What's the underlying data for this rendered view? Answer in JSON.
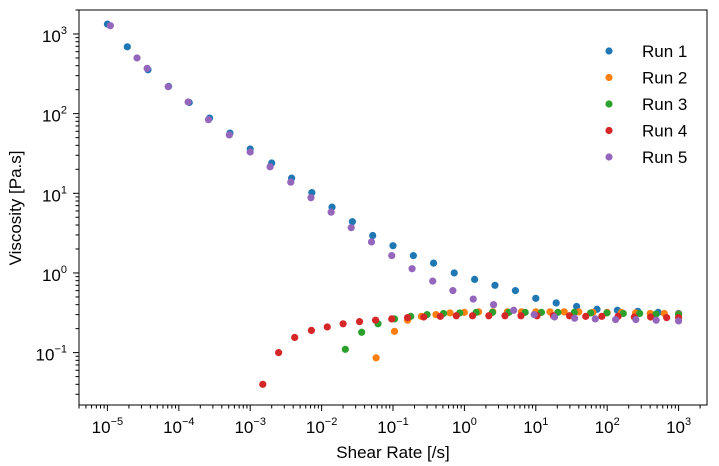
{
  "chart_data": {
    "type": "scatter",
    "xlabel": "Shear Rate [/s]",
    "ylabel": "Viscosity [Pa.s]",
    "x_scale": "log",
    "y_scale": "log",
    "xlim": [
      4e-06,
      2500.0
    ],
    "ylim": [
      0.022,
      2000
    ],
    "x_ticks": [
      {
        "value": 1e-05,
        "base": "10",
        "exp": "−5"
      },
      {
        "value": 0.0001,
        "base": "10",
        "exp": "−4"
      },
      {
        "value": 0.001,
        "base": "10",
        "exp": "−3"
      },
      {
        "value": 0.01,
        "base": "10",
        "exp": "−2"
      },
      {
        "value": 0.1,
        "base": "10",
        "exp": "−1"
      },
      {
        "value": 1,
        "base": "10",
        "exp": "0"
      },
      {
        "value": 10,
        "base": "10",
        "exp": "1"
      },
      {
        "value": 100,
        "base": "10",
        "exp": "2"
      },
      {
        "value": 1000,
        "base": "10",
        "exp": "3"
      }
    ],
    "y_ticks": [
      {
        "value": 0.1,
        "base": "10",
        "exp": "−1"
      },
      {
        "value": 1,
        "base": "10",
        "exp": "0"
      },
      {
        "value": 10,
        "base": "10",
        "exp": "1"
      },
      {
        "value": 100,
        "base": "10",
        "exp": "2"
      },
      {
        "value": 1000,
        "base": "10",
        "exp": "3"
      }
    ],
    "legend_position": "top-right",
    "grid": false,
    "series": [
      {
        "name": "Run 1",
        "color": "#1f77b4",
        "points": [
          [
            1e-05,
            1330
          ],
          [
            1.9e-05,
            690
          ],
          [
            3.7e-05,
            355
          ],
          [
            7.2e-05,
            220
          ],
          [
            0.00014,
            138
          ],
          [
            0.00027,
            88
          ],
          [
            0.00052,
            57
          ],
          [
            0.001,
            36
          ],
          [
            0.002,
            24
          ],
          [
            0.0038,
            15.5
          ],
          [
            0.0073,
            10.2
          ],
          [
            0.014,
            6.7
          ],
          [
            0.027,
            4.4
          ],
          [
            0.052,
            2.95
          ],
          [
            0.1,
            2.2
          ],
          [
            0.193,
            1.65
          ],
          [
            0.37,
            1.33
          ],
          [
            0.72,
            1.0
          ],
          [
            1.39,
            0.83
          ],
          [
            2.68,
            0.7
          ],
          [
            5.18,
            0.6
          ],
          [
            10,
            0.48
          ],
          [
            19.3,
            0.42
          ],
          [
            37.3,
            0.38
          ],
          [
            72,
            0.35
          ],
          [
            139,
            0.34
          ],
          [
            268,
            0.33
          ],
          [
            518,
            0.32
          ],
          [
            1000,
            0.31
          ]
        ]
      },
      {
        "name": "Run 2",
        "color": "#ff7f0e",
        "points": [
          [
            0.058,
            0.086
          ],
          [
            0.105,
            0.185
          ],
          [
            0.16,
            0.255
          ],
          [
            0.25,
            0.285
          ],
          [
            0.4,
            0.3
          ],
          [
            0.63,
            0.315
          ],
          [
            1.0,
            0.32
          ],
          [
            1.58,
            0.325
          ],
          [
            2.5,
            0.325
          ],
          [
            4.0,
            0.325
          ],
          [
            6.3,
            0.325
          ],
          [
            10,
            0.325
          ],
          [
            15.8,
            0.325
          ],
          [
            25,
            0.325
          ],
          [
            40,
            0.325
          ],
          [
            63,
            0.32
          ],
          [
            100,
            0.32
          ],
          [
            158,
            0.32
          ],
          [
            250,
            0.315
          ],
          [
            400,
            0.31
          ],
          [
            630,
            0.31
          ],
          [
            1000,
            0.305
          ]
        ]
      },
      {
        "name": "Run 3",
        "color": "#2ca02c",
        "points": [
          [
            0.0215,
            0.11
          ],
          [
            0.0364,
            0.18
          ],
          [
            0.0617,
            0.23
          ],
          [
            0.105,
            0.265
          ],
          [
            0.177,
            0.285
          ],
          [
            0.3,
            0.3
          ],
          [
            0.51,
            0.31
          ],
          [
            0.86,
            0.315
          ],
          [
            1.46,
            0.32
          ],
          [
            2.47,
            0.32
          ],
          [
            4.2,
            0.32
          ],
          [
            7.1,
            0.32
          ],
          [
            12,
            0.32
          ],
          [
            20.4,
            0.32
          ],
          [
            34.6,
            0.32
          ],
          [
            58.6,
            0.315
          ],
          [
            99,
            0.315
          ],
          [
            168,
            0.31
          ],
          [
            285,
            0.31
          ],
          [
            482,
            0.305
          ],
          [
            1000,
            0.3
          ]
        ]
      },
      {
        "name": "Run 4",
        "color": "#d62728",
        "points": [
          [
            0.0015,
            0.04
          ],
          [
            0.0025,
            0.1
          ],
          [
            0.0042,
            0.155
          ],
          [
            0.0072,
            0.19
          ],
          [
            0.012,
            0.21
          ],
          [
            0.02,
            0.23
          ],
          [
            0.034,
            0.245
          ],
          [
            0.057,
            0.255
          ],
          [
            0.096,
            0.265
          ],
          [
            0.16,
            0.275
          ],
          [
            0.27,
            0.28
          ],
          [
            0.46,
            0.285
          ],
          [
            0.77,
            0.29
          ],
          [
            1.3,
            0.29
          ],
          [
            2.2,
            0.29
          ],
          [
            3.7,
            0.29
          ],
          [
            6.2,
            0.29
          ],
          [
            10.4,
            0.29
          ],
          [
            17.6,
            0.29
          ],
          [
            29.6,
            0.29
          ],
          [
            50,
            0.285
          ],
          [
            84,
            0.285
          ],
          [
            142,
            0.285
          ],
          [
            240,
            0.28
          ],
          [
            405,
            0.28
          ],
          [
            680,
            0.275
          ],
          [
            1000,
            0.275
          ]
        ]
      },
      {
        "name": "Run 5",
        "color": "#9467bd",
        "points": [
          [
            1.1e-05,
            1270
          ],
          [
            2.6e-05,
            500
          ],
          [
            3.6e-05,
            370
          ],
          [
            7.1e-05,
            218
          ],
          [
            0.000135,
            140
          ],
          [
            0.00026,
            84
          ],
          [
            0.00051,
            54
          ],
          [
            0.001,
            33
          ],
          [
            0.0019,
            21.5
          ],
          [
            0.0037,
            13.8
          ],
          [
            0.0071,
            8.8
          ],
          [
            0.0136,
            5.8
          ],
          [
            0.026,
            3.7
          ],
          [
            0.05,
            2.45
          ],
          [
            0.096,
            1.65
          ],
          [
            0.185,
            1.13
          ],
          [
            0.36,
            0.79
          ],
          [
            0.69,
            0.6
          ],
          [
            1.33,
            0.47
          ],
          [
            2.56,
            0.4
          ],
          [
            4.9,
            0.34
          ],
          [
            9.5,
            0.3
          ],
          [
            18.3,
            0.28
          ],
          [
            35,
            0.27
          ],
          [
            68,
            0.265
          ],
          [
            131,
            0.26
          ],
          [
            252,
            0.26
          ],
          [
            485,
            0.255
          ],
          [
            1000,
            0.25
          ]
        ]
      }
    ]
  }
}
